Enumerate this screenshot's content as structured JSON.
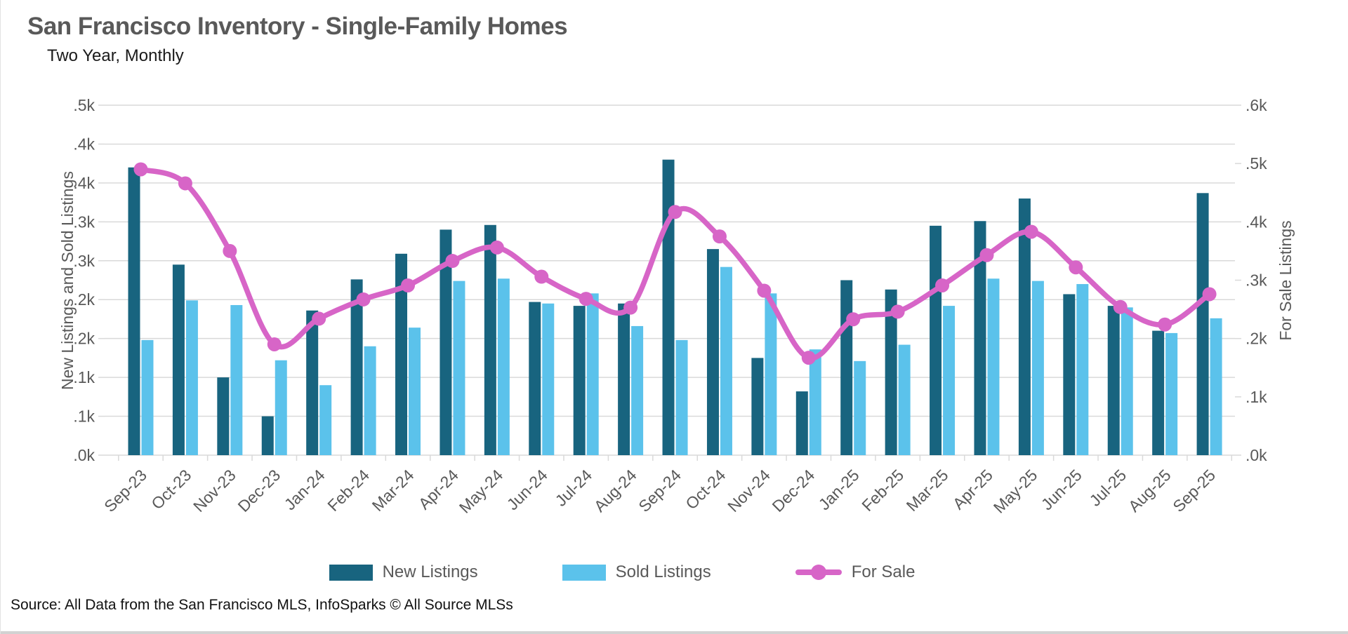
{
  "title": "San Francisco Inventory - Single-Family Homes",
  "subtitle": "Two Year, Monthly",
  "source": "Source: All Data from the San Francisco MLS, InfoSparks © All Source MLSs",
  "left_axis": {
    "title": "New Listings and Sold Listings",
    "tick_labels": [
      ".0k",
      ".1k",
      ".1k",
      ".2k",
      ".2k",
      ".3k",
      ".3k",
      ".4k",
      ".4k",
      ".5k"
    ],
    "min": 0,
    "max": 450,
    "tick_step": 50
  },
  "right_axis": {
    "title": "For Sale Listings",
    "tick_labels": [
      ".0k",
      ".1k",
      ".2k",
      ".3k",
      ".4k",
      ".5k",
      ".6k"
    ],
    "min": 0,
    "max": 600,
    "tick_step": 100
  },
  "legend": [
    {
      "label": "New Listings",
      "type": "bar",
      "color": "#18647F"
    },
    {
      "label": "Sold Listings",
      "type": "bar",
      "color": "#5BC2EB"
    },
    {
      "label": "For Sale",
      "type": "line",
      "color": "#D765C7"
    }
  ],
  "colors": {
    "new_listings": "#18647F",
    "sold_listings": "#5BC2EB",
    "for_sale": "#D765C7",
    "gridline": "#d9d9d9",
    "axis_text": "#595959"
  },
  "chart_data": {
    "type": "bar",
    "subtype": "grouped bars with smoothed line overlay",
    "categories": [
      "Sep-23",
      "Oct-23",
      "Nov-23",
      "Dec-23",
      "Jan-24",
      "Feb-24",
      "Mar-24",
      "Apr-24",
      "May-24",
      "Jun-24",
      "Jul-24",
      "Aug-24",
      "Sep-24",
      "Oct-24",
      "Nov-24",
      "Dec-24",
      "Jan-25",
      "Feb-25",
      "Mar-25",
      "Apr-25",
      "May-25",
      "Jun-25",
      "Jul-25",
      "Aug-25",
      "Sep-25"
    ],
    "series": [
      {
        "name": "New Listings",
        "type": "bar",
        "axis": "left",
        "values": [
          370,
          245,
          100,
          50,
          186,
          226,
          259,
          290,
          296,
          197,
          192,
          195,
          380,
          265,
          125,
          82,
          225,
          213,
          295,
          301,
          330,
          207,
          192,
          160,
          337
        ]
      },
      {
        "name": "Sold Listings",
        "type": "bar",
        "axis": "left",
        "values": [
          148,
          199,
          193,
          122,
          90,
          140,
          164,
          224,
          227,
          195,
          208,
          166,
          148,
          242,
          208,
          136,
          121,
          142,
          192,
          227,
          224,
          220,
          190,
          157,
          176
        ]
      },
      {
        "name": "For Sale",
        "type": "line",
        "axis": "right",
        "values": [
          490,
          466,
          350,
          190,
          234,
          267,
          291,
          333,
          356,
          306,
          268,
          253,
          417,
          375,
          282,
          167,
          233,
          246,
          291,
          343,
          383,
          322,
          254,
          224,
          276
        ]
      }
    ],
    "title": "San Francisco Inventory - Single-Family Homes",
    "xlabel": "",
    "ylabel_left": "New Listings and Sold Listings",
    "ylabel_right": "For Sale Listings",
    "left_ylim": [
      0,
      450
    ],
    "right_ylim": [
      0,
      600
    ],
    "grid": true,
    "legend_position": "bottom"
  }
}
